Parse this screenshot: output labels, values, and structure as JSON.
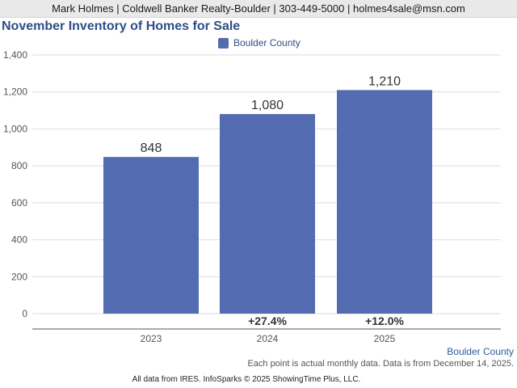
{
  "header": {
    "contact": "Mark Holmes | Coldwell Banker Realty-Boulder | 303-449-5000 | holmes4sale@msn.com"
  },
  "chart_data": {
    "type": "bar",
    "title": "November Inventory of Homes for Sale",
    "categories": [
      "2023",
      "2024",
      "2025"
    ],
    "series": [
      {
        "name": "Boulder County",
        "values": [
          848,
          1080,
          1210
        ],
        "color": "#536bb0"
      }
    ],
    "value_labels": [
      "848",
      "1,080",
      "1,210"
    ],
    "change_labels": [
      "",
      "+27.4%",
      "+12.0%"
    ],
    "y_ticks": [
      "0",
      "200",
      "400",
      "600",
      "800",
      "1,000",
      "1,200",
      "1,400"
    ],
    "ylim": [
      0,
      1400
    ],
    "grid": true,
    "legend_position": "top-center",
    "xlabel": "",
    "ylabel": ""
  },
  "footer": {
    "series_tag": "Boulder County",
    "note": "Each point is actual monthly data. Data is from December 14, 2025.",
    "source": "All data from IRES. InfoSparks © 2025 ShowingTime Plus, LLC."
  }
}
